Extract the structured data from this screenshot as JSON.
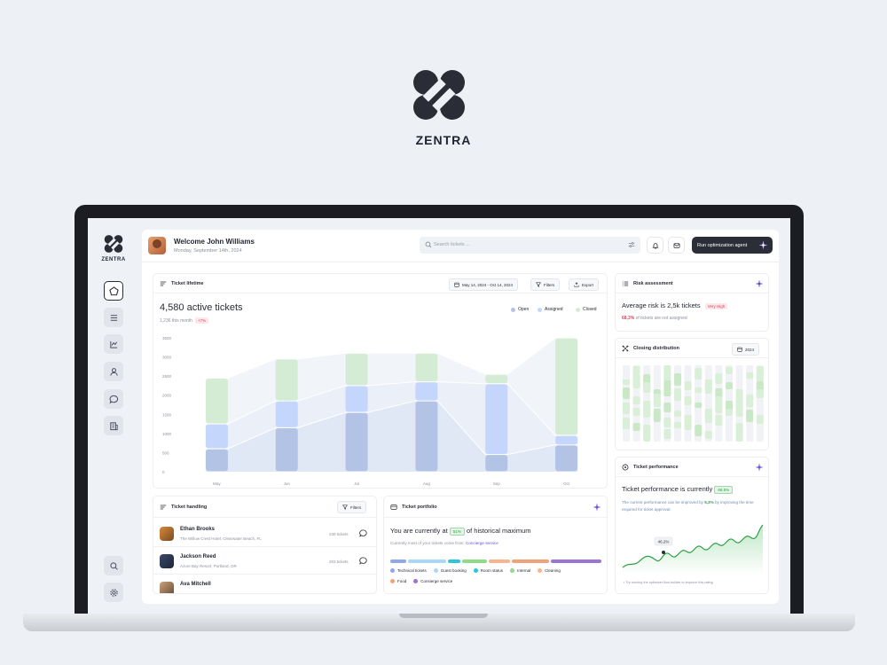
{
  "brand": {
    "name": "ZENTRA"
  },
  "header": {
    "welcome": "Welcome John Williams",
    "date": "Monday, September 14th, 2024",
    "search_placeholder": "Search tickets ...",
    "run_button": "Run optimization agent"
  },
  "lifetime": {
    "title": "Ticket lifetime",
    "date_range": "May 14, 2024 - Oct 14, 2024",
    "filters": "Filters",
    "export": "Export",
    "headline": "4,580 active tickets",
    "sub": "1,236 this month",
    "delta": "+7%",
    "legend": [
      "Open",
      "Assigned",
      "Closed"
    ]
  },
  "chart_data": {
    "type": "bar",
    "stacked": true,
    "categories": [
      "May",
      "Jun",
      "Jul",
      "Aug",
      "Sep",
      "Oct"
    ],
    "series": [
      {
        "name": "Open",
        "values": [
          600,
          1150,
          1550,
          1850,
          450,
          700
        ]
      },
      {
        "name": "Assigned",
        "values": [
          650,
          700,
          700,
          500,
          1850,
          250
        ]
      },
      {
        "name": "Closed",
        "values": [
          1200,
          1100,
          850,
          750,
          250,
          2550
        ]
      }
    ],
    "ylim": [
      0,
      3500
    ],
    "yticks": [
      "3500",
      "3000",
      "2500",
      "2000",
      "1500",
      "1000",
      "500",
      "0"
    ],
    "colors": [
      "#b2c3e6",
      "#c4d6fb",
      "#d5ecd4"
    ]
  },
  "risk": {
    "title": "Risk assessment",
    "headline": "Average risk is 2,5k tickets",
    "badge": "Very High",
    "pct": "68,3%",
    "desc": "of tickets are not assigned"
  },
  "closing": {
    "title": "Closing distribution",
    "year": "2024"
  },
  "performance": {
    "title": "Ticket performance",
    "headline": "Ticket performance is currently",
    "badge": "68.5%",
    "desc1": "The current performance can be improved by",
    "desc_pct": "5,3%",
    "desc_by": "by",
    "desc2": "improving the time required for ticket approval.",
    "marker": "46.2%",
    "footer": "Try running the optimizer flow builder to improve this rating"
  },
  "handling": {
    "title": "Ticket handling",
    "filters": "Filters",
    "rows": [
      {
        "name": "Ethan Brooks",
        "location": "The Willow Crest Hotel, Clearwater Beach, FL",
        "count": "239 tickets"
      },
      {
        "name": "Jackson Reed",
        "location": "Azure Bay Resort, Portland, OR",
        "count": "203 tickets"
      },
      {
        "name": "Ava Mitchell",
        "location": "",
        "count": ""
      }
    ]
  },
  "portfolio": {
    "title": "Ticket portfolio",
    "headline_pre": "You are currently at",
    "badge": "51%",
    "headline_post": "of historical maximum",
    "desc": "Currently most of your tickets come from:",
    "desc_link": "Concierge service",
    "categories": [
      "Technical tickets",
      "Guest booking",
      "Room status",
      "Internal",
      "Cleaning",
      "Food",
      "Consierge service"
    ],
    "colors": [
      "#8fa8e8",
      "#a9d7f5",
      "#2cc6d6",
      "#8edb88",
      "#f7b48e",
      "#f0a37a",
      "#9c74d4"
    ]
  }
}
